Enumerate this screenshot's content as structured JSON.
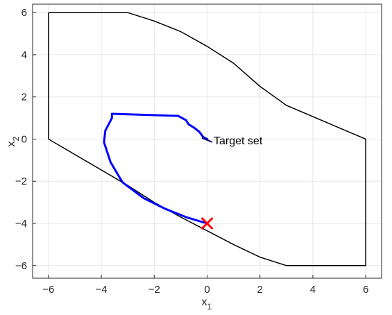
{
  "chart_data": {
    "type": "line",
    "title": "",
    "xlabel": {
      "base": "x",
      "sub": "1"
    },
    "ylabel": {
      "base": "x",
      "sub": "2"
    },
    "xlim": [
      -6.6,
      6.6
    ],
    "ylim": [
      -6.6,
      6.4
    ],
    "xticks": [
      -6,
      -4,
      -2,
      0,
      2,
      4,
      6
    ],
    "yticks": [
      -6,
      -4,
      -2,
      0,
      2,
      4,
      6
    ],
    "xtick_labels": [
      "−6",
      "−4",
      "−2",
      "0",
      "2",
      "4",
      "6"
    ],
    "ytick_labels": [
      "−6",
      "−4",
      "−2",
      "0",
      "2",
      "4",
      "6"
    ],
    "grid": true,
    "series": [
      {
        "role": "feasible-region-boundary",
        "color": "#000000",
        "points": [
          [
            -6,
            6
          ],
          [
            -3,
            6
          ],
          [
            -2,
            5.6
          ],
          [
            -1,
            5.1
          ],
          [
            0,
            4.4
          ],
          [
            1,
            3.6
          ],
          [
            2,
            2.5
          ],
          [
            3,
            1.6
          ],
          [
            6,
            0
          ],
          [
            6,
            -6
          ],
          [
            3,
            -6
          ],
          [
            2,
            -5.6
          ],
          [
            1,
            -5
          ],
          [
            0,
            -4.35
          ],
          [
            -1,
            -3.7
          ],
          [
            -2,
            -3
          ],
          [
            -3,
            -2.2
          ],
          [
            -6,
            0
          ],
          [
            -6,
            6
          ]
        ]
      },
      {
        "role": "state-trajectory",
        "color": "#0000ff",
        "points": [
          [
            0,
            -4
          ],
          [
            -0.8,
            -3.7
          ],
          [
            -1.6,
            -3.3
          ],
          [
            -2.4,
            -2.8
          ],
          [
            -3.2,
            -2.05
          ],
          [
            -3.65,
            -1.1
          ],
          [
            -3.9,
            -0.15
          ],
          [
            -3.85,
            0.4
          ],
          [
            -3.6,
            1
          ],
          [
            -3.6,
            1.2
          ],
          [
            -1.1,
            1.1
          ],
          [
            -0.8,
            0.9
          ],
          [
            -0.7,
            0.7
          ],
          [
            -0.5,
            0.55
          ],
          [
            -0.3,
            0.35
          ],
          [
            -0.15,
            0.1
          ],
          [
            0,
            0
          ]
        ]
      },
      {
        "role": "target-set",
        "color": "#0000cc",
        "points": [
          [
            -0.2,
            0.05
          ],
          [
            0.05,
            -0.05
          ],
          [
            0.2,
            -0.15
          ],
          [
            -0.1,
            0
          ],
          [
            -0.2,
            0.05
          ]
        ]
      }
    ],
    "initial_state": {
      "x": 0,
      "y": -4,
      "marker": "x",
      "color": "#ff0000"
    },
    "annotations": [
      {
        "text": "Target set",
        "x": 0.25,
        "y": -0.05
      }
    ]
  }
}
